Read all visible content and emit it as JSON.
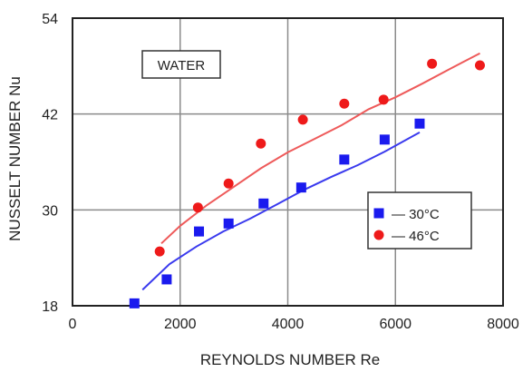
{
  "chart_data": {
    "type": "scatter",
    "xlabel": "REYNOLDS NUMBER Re",
    "ylabel": "NUSSELT NUMBER Nu",
    "xlim": [
      0,
      8000
    ],
    "ylim": [
      18,
      54
    ],
    "xticks": [
      0,
      2000,
      4000,
      6000,
      8000
    ],
    "yticks": [
      18,
      30,
      42,
      54
    ],
    "grid": true,
    "annotation": "WATER",
    "legend_position": "right",
    "series": [
      {
        "name": "30°C",
        "legend_label": "— 30°C",
        "marker": "square",
        "color": "#1a1aee",
        "points": [
          [
            1150,
            18.3
          ],
          [
            1750,
            21.3
          ],
          [
            2350,
            27.3
          ],
          [
            2900,
            28.3
          ],
          [
            3550,
            30.8
          ],
          [
            4250,
            32.8
          ],
          [
            5050,
            36.3
          ],
          [
            5800,
            38.8
          ],
          [
            6450,
            40.8
          ]
        ],
        "fit": [
          [
            1300,
            20.0
          ],
          [
            1800,
            23.2
          ],
          [
            2300,
            25.4
          ],
          [
            2800,
            27.3
          ],
          [
            3300,
            28.9
          ],
          [
            3800,
            30.7
          ],
          [
            4300,
            32.5
          ],
          [
            4800,
            34.1
          ],
          [
            5300,
            35.6
          ],
          [
            5800,
            37.3
          ],
          [
            6450,
            39.7
          ]
        ]
      },
      {
        "name": "46°C",
        "legend_label": "— 46°C",
        "marker": "circle",
        "color": "#ee1a1a",
        "points": [
          [
            1620,
            24.8
          ],
          [
            2330,
            30.3
          ],
          [
            2900,
            33.3
          ],
          [
            3500,
            38.3
          ],
          [
            4280,
            41.3
          ],
          [
            5050,
            43.3
          ],
          [
            5780,
            43.8
          ],
          [
            6680,
            48.3
          ],
          [
            7570,
            48.1
          ]
        ],
        "fit": [
          [
            1650,
            25.8
          ],
          [
            2000,
            28.0
          ],
          [
            2500,
            30.6
          ],
          [
            3000,
            32.9
          ],
          [
            3500,
            35.2
          ],
          [
            4000,
            37.2
          ],
          [
            4500,
            38.9
          ],
          [
            5000,
            40.6
          ],
          [
            5500,
            42.6
          ],
          [
            6000,
            44.1
          ],
          [
            6500,
            45.8
          ],
          [
            7000,
            47.6
          ],
          [
            7570,
            49.6
          ]
        ]
      }
    ]
  }
}
